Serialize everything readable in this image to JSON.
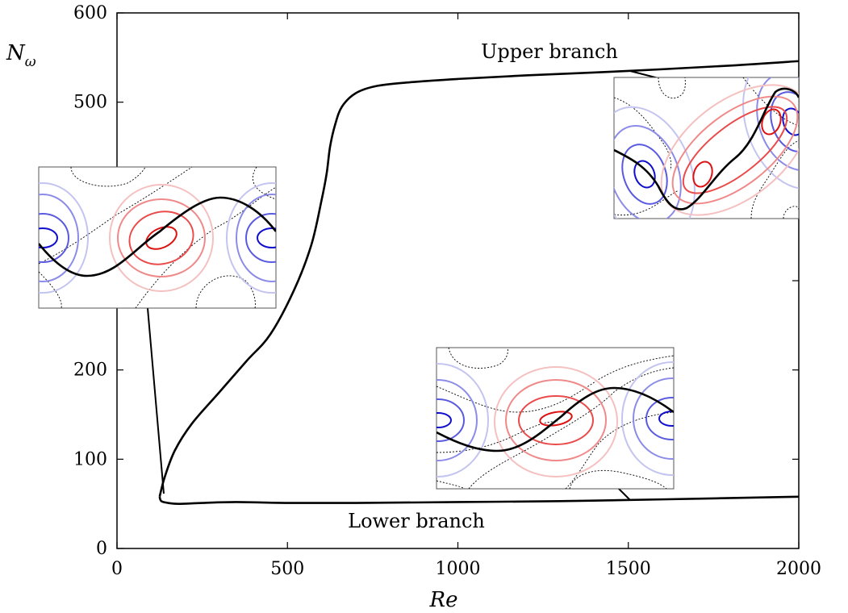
{
  "chart_data": {
    "type": "line",
    "xlabel": "Re",
    "ylabel_main": "N",
    "ylabel_sub": "ω",
    "xlim": [
      0,
      2000
    ],
    "ylim": [
      0,
      600
    ],
    "x_ticks": [
      0,
      500,
      1000,
      1500,
      2000
    ],
    "y_ticks": [
      0,
      100,
      200,
      500,
      600
    ],
    "x_tick_labels": [
      "0",
      "500",
      "1000",
      "1500",
      "2000"
    ],
    "y_tick_labels": [
      "0",
      "100",
      "200",
      "500",
      "600"
    ],
    "grid": false,
    "series": [
      {
        "name": "Upper branch",
        "x": [
          125,
          140,
          170,
          220,
          300,
          380,
          450,
          520,
          570,
          600,
          615,
          625,
          640,
          660,
          700,
          760,
          850,
          1000,
          1200,
          1500,
          1800,
          2000
        ],
        "y": [
          58,
          80,
          110,
          140,
          175,
          210,
          240,
          290,
          340,
          390,
          420,
          450,
          475,
          495,
          510,
          518,
          522,
          526,
          530,
          535,
          541,
          546
        ]
      },
      {
        "name": "Lower branch",
        "x": [
          125,
          130,
          150,
          180,
          250,
          350,
          500,
          700,
          1000,
          1300,
          1600,
          2000
        ],
        "y": [
          58,
          53,
          51,
          50,
          51,
          52,
          51,
          51,
          52,
          53,
          55,
          58
        ]
      }
    ],
    "annotations": [
      {
        "text": "Upper branch",
        "x": 1320,
        "y": 555
      },
      {
        "text": "Lower branch",
        "x": 1000,
        "y": 30
      }
    ]
  }
}
